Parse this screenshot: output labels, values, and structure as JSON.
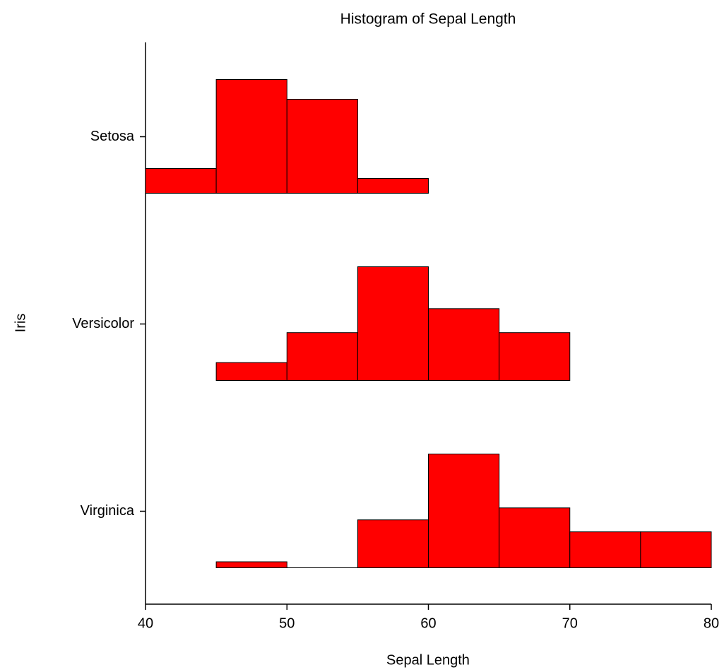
{
  "chart_data": {
    "type": "histogram",
    "title": "Histogram of Sepal Length",
    "x_label": "Sepal Length",
    "y_label": "Iris",
    "bins": [
      40,
      45,
      50,
      55,
      60,
      65,
      70,
      75,
      80
    ],
    "series": [
      {
        "name": "Setosa",
        "color": "#ff0000",
        "values": [
          5,
          23,
          19,
          3,
          0,
          0,
          0,
          0
        ]
      },
      {
        "name": "Versicolor",
        "color": "#ff0000",
        "values": [
          0,
          3,
          8,
          19,
          12,
          8,
          0,
          0
        ]
      },
      {
        "name": "Virginica",
        "color": "#ff0000",
        "values": [
          0,
          1,
          0,
          8,
          19,
          10,
          6,
          6
        ]
      }
    ],
    "xlim": [
      40,
      80
    ],
    "xticks": [
      40,
      50,
      60,
      70,
      80
    ]
  }
}
